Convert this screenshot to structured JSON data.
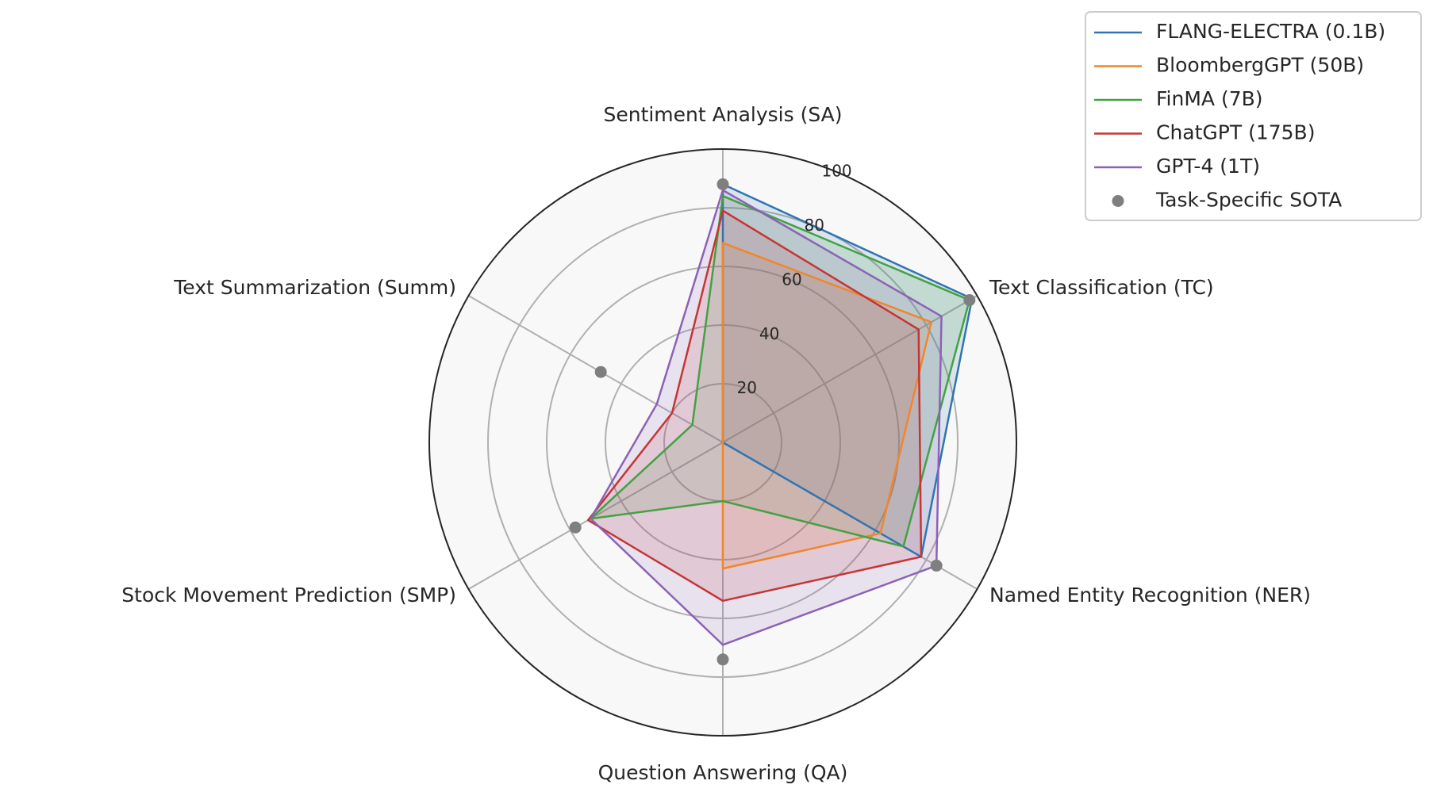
{
  "chart_data": {
    "type": "radar",
    "title": "",
    "axes": [
      "Sentiment Analysis (SA)",
      "Text Classification (TC)",
      "Named Entity Recognition (NER)",
      "Question Answering (QA)",
      "Stock Movement Prediction (SMP)",
      "Text Summarization (Summ)"
    ],
    "rlim": [
      0,
      100
    ],
    "rticks": [
      20,
      40,
      60,
      80,
      100
    ],
    "grid": true,
    "legend_position": "top-right",
    "series": [
      {
        "name": "FLANG-ELECTRA (0.1B)",
        "color": "#3274b1",
        "marker": "line",
        "values": [
          88,
          98,
          78,
          0,
          0,
          0
        ]
      },
      {
        "name": "BloombergGPT (50B)",
        "color": "#f0862c",
        "marker": "line",
        "values": [
          68,
          82,
          62,
          43,
          0,
          0
        ]
      },
      {
        "name": "FinMA (7B)",
        "color": "#44a143",
        "marker": "line",
        "values": [
          84,
          97,
          71,
          20,
          52,
          12
        ]
      },
      {
        "name": "ChatGPT (175B)",
        "color": "#c53535",
        "marker": "line",
        "values": [
          79,
          77,
          78,
          54,
          53,
          20
        ]
      },
      {
        "name": "GPT-4 (1T)",
        "color": "#8c62b5",
        "marker": "line",
        "values": [
          86,
          86,
          84,
          69,
          52,
          26
        ]
      },
      {
        "name": "Task-Specific SOTA",
        "color": "#7f7f7f",
        "marker": "dot",
        "values": [
          88,
          97,
          84,
          74,
          58,
          48
        ]
      }
    ]
  }
}
